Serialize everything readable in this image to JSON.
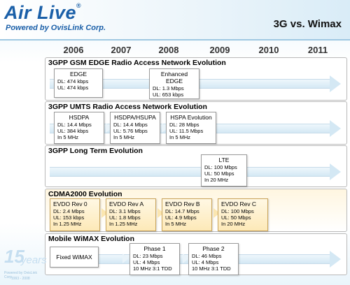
{
  "brand": {
    "logo": "Air Live",
    "tagline": "Powered by OvisLink Corp.",
    "registered_mark": "®"
  },
  "page_title": "3G vs. Wimax",
  "years": [
    "2006",
    "2007",
    "2008",
    "2009",
    "2010",
    "2011"
  ],
  "sections": [
    {
      "title": "3GPP GSM EDGE Radio Access Network Evolution",
      "boxes": [
        {
          "title": "EDGE",
          "lines": [
            "DL: 474 kbps",
            "UL: 474 kbps"
          ]
        },
        {
          "title": "Enhanced EDGE",
          "lines": [
            "DL: 1.3 Mbps",
            "UL: 653 kbps"
          ]
        }
      ]
    },
    {
      "title": "3GPP UMTS Radio Access Network Evolution",
      "boxes": [
        {
          "title": "HSDPA",
          "lines": [
            "DL: 14.4 Mbps",
            "UL: 384 kbps",
            "In 5 MHz"
          ]
        },
        {
          "title": "HSDPA/HSUPA",
          "lines": [
            "DL: 14.4 Mbps",
            "UL: 5.76 Mbps",
            "In 5 MHz"
          ]
        },
        {
          "title": "HSPA Evolution",
          "lines": [
            "DL: 28 Mbps",
            "UL: 11.5 Mbps",
            "In 5 MHz"
          ]
        }
      ]
    },
    {
      "title": "3GPP Long Term Evolution",
      "boxes": [
        {
          "title": "LTE",
          "lines": [
            "DL: 100 Mbps",
            "UL: 50 Mbps",
            "In 20 MHz"
          ]
        }
      ]
    },
    {
      "title": "CDMA2000 Evolution",
      "boxes": [
        {
          "title": "EVDO Rev 0",
          "lines": [
            "DL: 2.4 Mbps",
            "UL: 153 kbps",
            "In 1.25 MHz"
          ]
        },
        {
          "title": "EVDO Rev A",
          "lines": [
            "DL: 3.1 Mbps",
            "UL: 1.8 Mbps",
            "In 1.25 MHz"
          ]
        },
        {
          "title": "EVDO Rev B",
          "lines": [
            "DL: 14.7 Mbps",
            "UL: 4.9 Mbps",
            "In 5 MHz"
          ]
        },
        {
          "title": "EVDO Rev C",
          "lines": [
            "DL: 100 Mbps",
            "UL: 50 Mbps",
            "In 20 MHz"
          ]
        }
      ]
    },
    {
      "title": "Mobile WiMAX Evolution",
      "boxes": [
        {
          "title": "Fixed WiMAX",
          "lines": []
        },
        {
          "title": "Phase 1",
          "lines": [
            "DL: 23 Mbps",
            "UL: 4 Mbps",
            "10 MHz 3:1 TDD"
          ]
        },
        {
          "title": "Phase 2",
          "lines": [
            "DL: 46 Mbps",
            "UL: 4 Mbps",
            "10 MHz 3:1 TDD"
          ]
        }
      ]
    }
  ],
  "anniversary": {
    "number": "15",
    "word": "years",
    "line1": "Powered by OvisLink Corp.",
    "line2": "1993 - 2008"
  }
}
